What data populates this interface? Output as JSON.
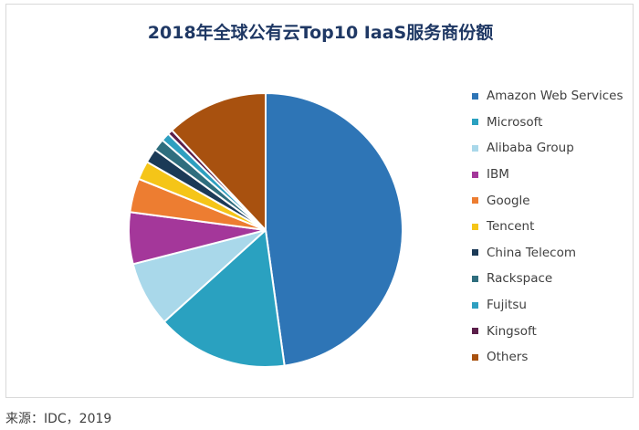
{
  "chart_data": {
    "type": "pie",
    "title": "2018年全球公有云Top10 IaaS服务商份额",
    "legend_position": "right",
    "slices": [
      {
        "label": "Amazon Web Services",
        "value": 47.8,
        "color": "#2e75b6"
      },
      {
        "label": "Microsoft",
        "value": 15.5,
        "color": "#2aa1c0"
      },
      {
        "label": "Alibaba Group",
        "value": 7.7,
        "color": "#a9d8ea"
      },
      {
        "label": "IBM",
        "value": 6.1,
        "color": "#a4379a"
      },
      {
        "label": "Google",
        "value": 4.0,
        "color": "#ed7d31"
      },
      {
        "label": "Tencent",
        "value": 2.2,
        "color": "#f5c518"
      },
      {
        "label": "China Telecom",
        "value": 1.7,
        "color": "#1b3a57"
      },
      {
        "label": "Rackspace",
        "value": 1.4,
        "color": "#2f6e7e"
      },
      {
        "label": "Fujitsu",
        "value": 1.0,
        "color": "#2e9fc0"
      },
      {
        "label": "Kingsoft",
        "value": 0.6,
        "color": "#5b1f4a"
      },
      {
        "label": "Others",
        "value": 12.0,
        "color": "#a8510f"
      }
    ]
  },
  "source": "来源：IDC，2019"
}
